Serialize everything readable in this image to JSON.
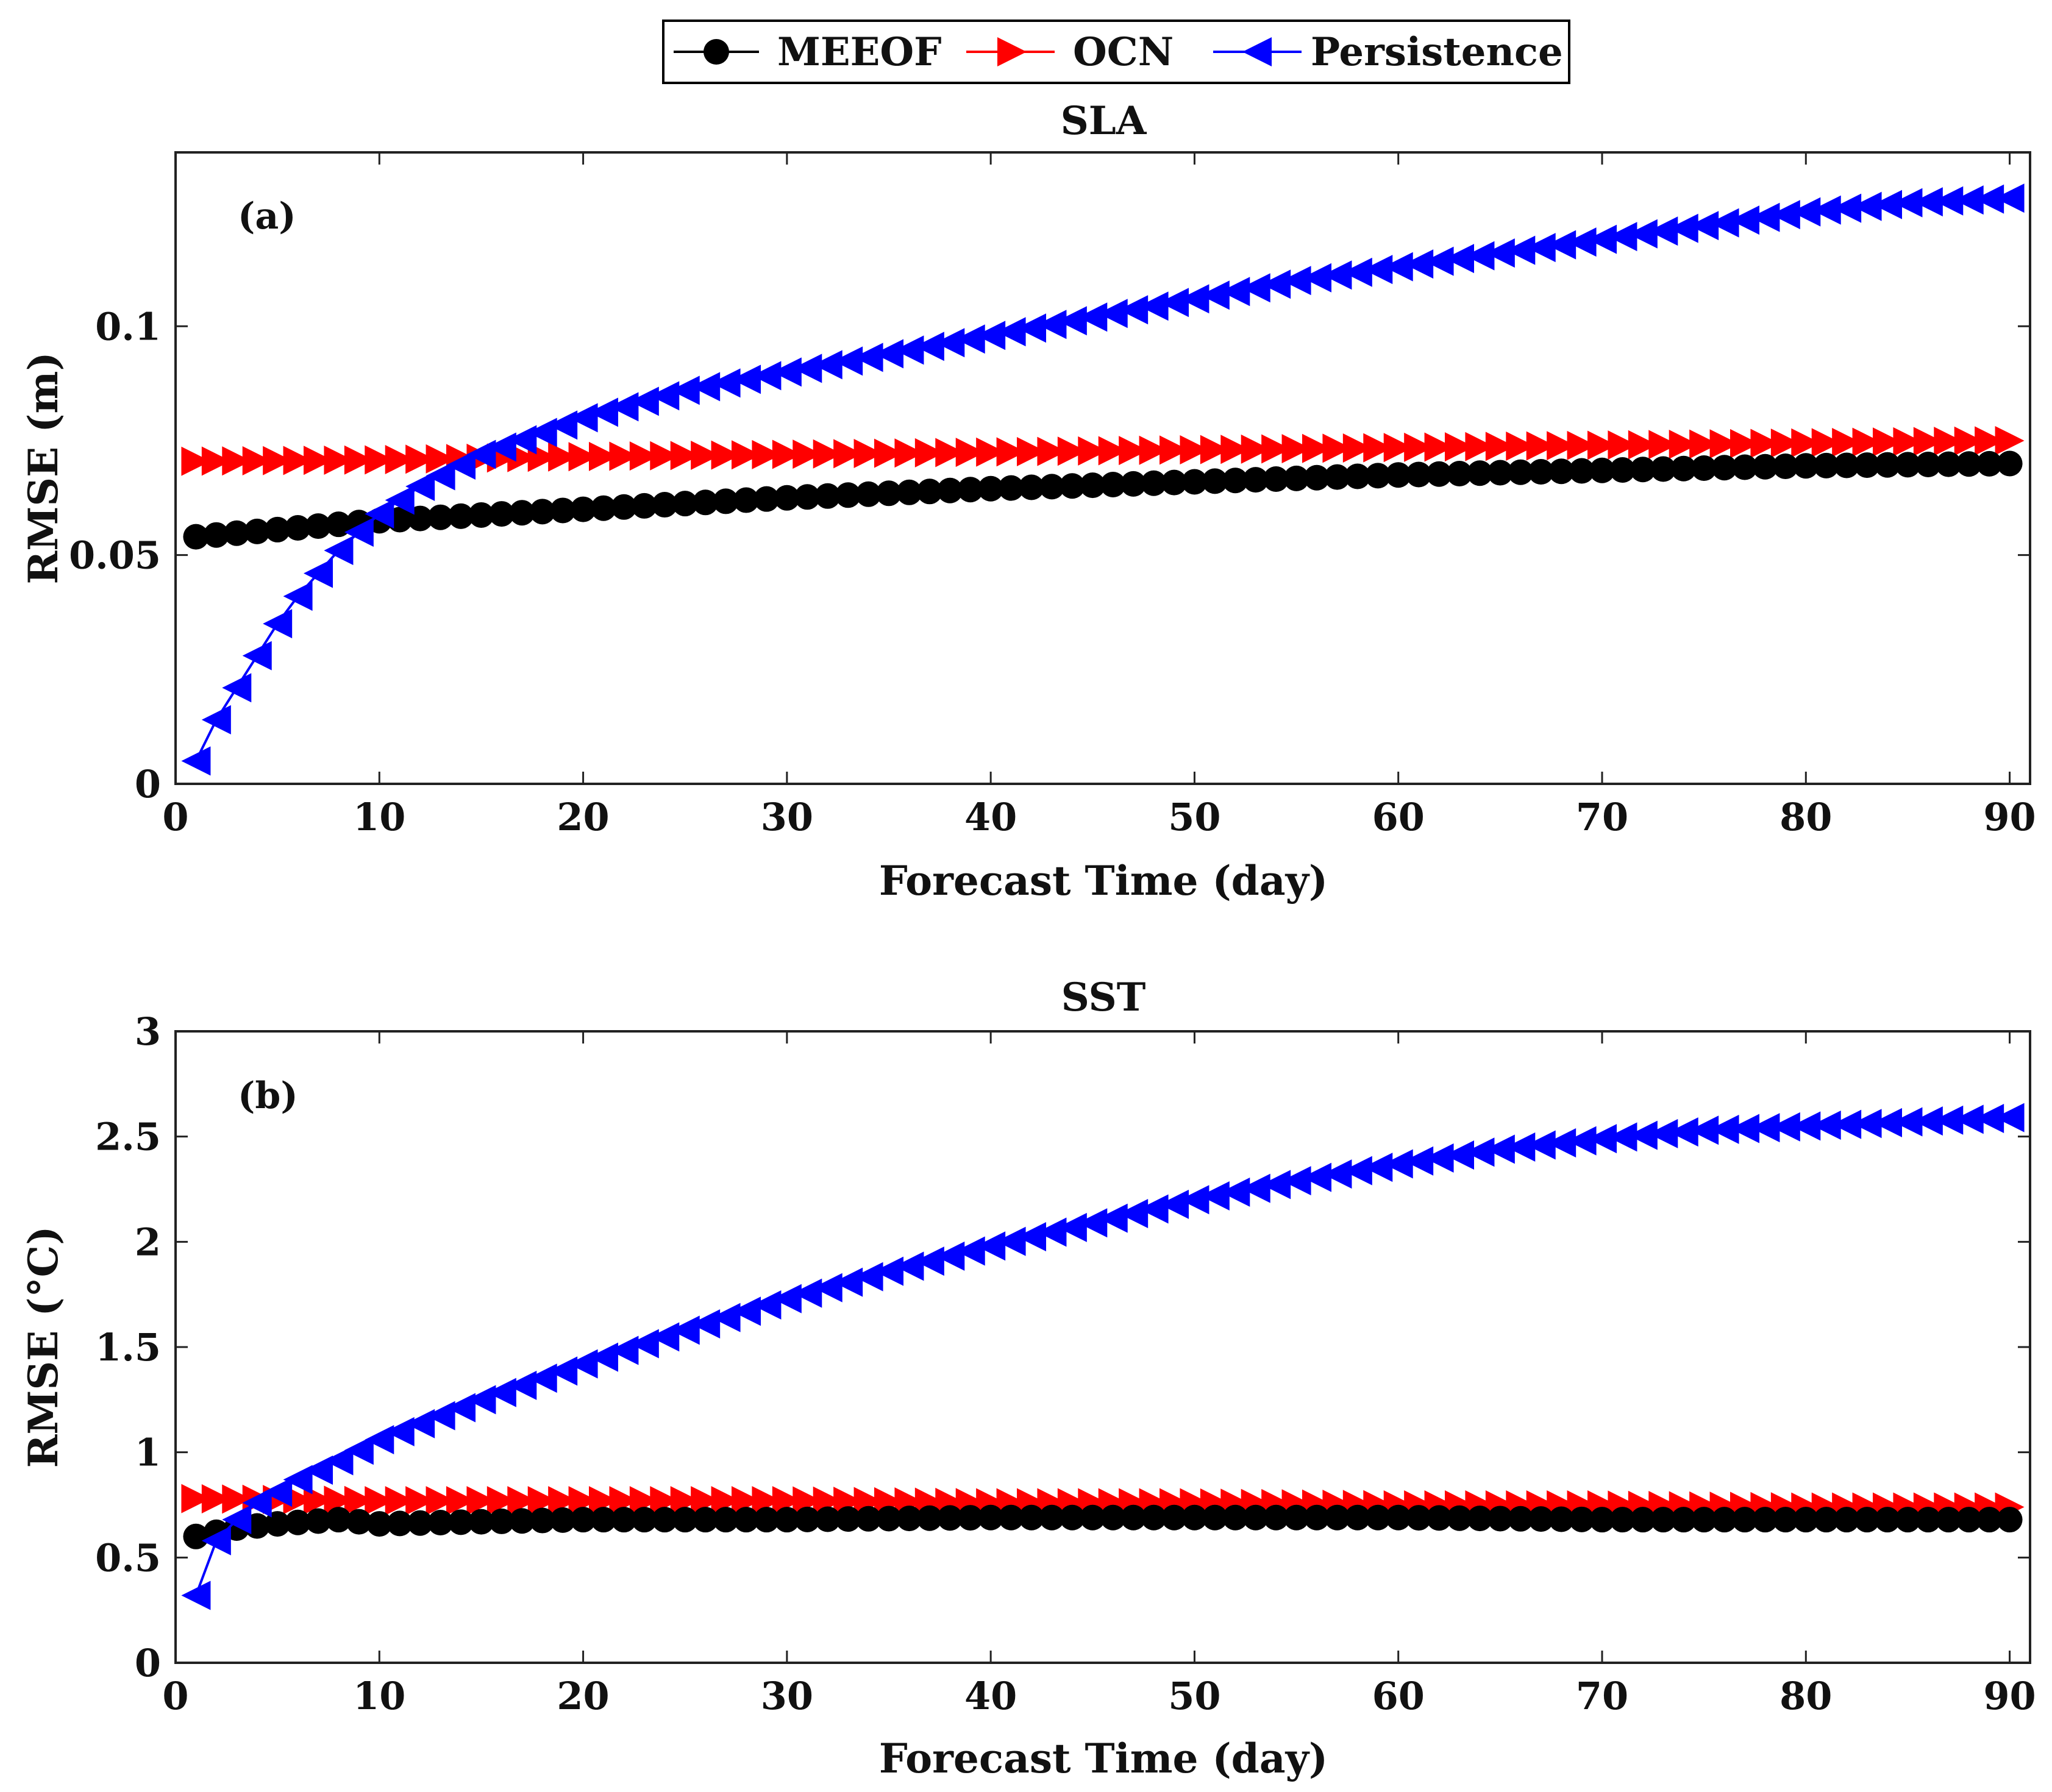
{
  "legend": {
    "entries": [
      {
        "label": "MEEOF",
        "color": "#000000",
        "marker": "circle"
      },
      {
        "label": "OCN",
        "color": "#ff0000",
        "marker": "triangle-right"
      },
      {
        "label": "Persistence",
        "color": "#0000ff",
        "marker": "triangle-left"
      }
    ],
    "placement": "top-center, outside plots"
  },
  "chart_data": [
    {
      "type": "line",
      "panel_label": "(a)",
      "title": "SLA",
      "xlabel": "Forecast Time (day)",
      "ylabel": "RMSE (m)",
      "xlim": [
        0,
        91
      ],
      "ylim": [
        0,
        0.138
      ],
      "xticks": [
        0,
        10,
        20,
        30,
        40,
        50,
        60,
        70,
        80,
        90
      ],
      "yticks": [
        0,
        0.05,
        0.1
      ],
      "ytick_labels": [
        "0",
        "0.05",
        "0.1"
      ],
      "xtick_labels": [
        "0",
        "10",
        "20",
        "30",
        "40",
        "50",
        "60",
        "70",
        "80",
        "90"
      ],
      "x_range_days": [
        1,
        90
      ],
      "grid": false,
      "series": [
        {
          "name": "MEEOF",
          "color": "#000000",
          "marker": "circle",
          "key_points": [
            [
              1,
              0.054
            ],
            [
              10,
              0.0575
            ],
            [
              20,
              0.06
            ],
            [
              30,
              0.0625
            ],
            [
              40,
              0.0645
            ],
            [
              50,
              0.066
            ],
            [
              60,
              0.0675
            ],
            [
              70,
              0.0685
            ],
            [
              80,
              0.0695
            ],
            [
              90,
              0.07
            ]
          ]
        },
        {
          "name": "OCN",
          "color": "#ff0000",
          "marker": "triangle-right",
          "key_points": [
            [
              1,
              0.0705
            ],
            [
              10,
              0.0708
            ],
            [
              20,
              0.0715
            ],
            [
              30,
              0.072
            ],
            [
              40,
              0.0725
            ],
            [
              50,
              0.073
            ],
            [
              60,
              0.0735
            ],
            [
              70,
              0.074
            ],
            [
              80,
              0.0745
            ],
            [
              90,
              0.075
            ]
          ]
        },
        {
          "name": "Persistence",
          "color": "#0000ff",
          "marker": "triangle-left",
          "key_points": [
            [
              1,
              0.005
            ],
            [
              2,
              0.014
            ],
            [
              3,
              0.021
            ],
            [
              4,
              0.028
            ],
            [
              5,
              0.035
            ],
            [
              6,
              0.041
            ],
            [
              7,
              0.046
            ],
            [
              8,
              0.051
            ],
            [
              9,
              0.055
            ],
            [
              10,
              0.059
            ],
            [
              12,
              0.065
            ],
            [
              15,
              0.072
            ],
            [
              20,
              0.08
            ],
            [
              25,
              0.086
            ],
            [
              30,
              0.09
            ],
            [
              35,
              0.094
            ],
            [
              40,
              0.098
            ],
            [
              45,
              0.102
            ],
            [
              50,
              0.106
            ],
            [
              55,
              0.11
            ],
            [
              60,
              0.113
            ],
            [
              65,
              0.116
            ],
            [
              70,
              0.119
            ],
            [
              75,
              0.122
            ],
            [
              80,
              0.125
            ],
            [
              85,
              0.127
            ],
            [
              90,
              0.128
            ]
          ]
        }
      ]
    },
    {
      "type": "line",
      "panel_label": "(b)",
      "title": "SST",
      "xlabel": "Forecast Time (day)",
      "ylabel": "RMSE (°C)",
      "xlim": [
        0,
        91
      ],
      "ylim": [
        0,
        3
      ],
      "xticks": [
        0,
        10,
        20,
        30,
        40,
        50,
        60,
        70,
        80,
        90
      ],
      "yticks": [
        0,
        0.5,
        1,
        1.5,
        2,
        2.5,
        3
      ],
      "ytick_labels": [
        "0",
        "0.5",
        "1",
        "1.5",
        "2",
        "2.5",
        "3"
      ],
      "xtick_labels": [
        "0",
        "10",
        "20",
        "30",
        "40",
        "50",
        "60",
        "70",
        "80",
        "90"
      ],
      "x_range_days": [
        1,
        90
      ],
      "grid": false,
      "series": [
        {
          "name": "MEEOF",
          "color": "#000000",
          "marker": "circle",
          "key_points": [
            [
              1,
              0.6
            ],
            [
              2,
              0.62
            ],
            [
              3,
              0.64
            ],
            [
              5,
              0.66
            ],
            [
              8,
              0.68
            ],
            [
              10,
              0.66
            ],
            [
              15,
              0.67
            ],
            [
              20,
              0.68
            ],
            [
              30,
              0.68
            ],
            [
              40,
              0.69
            ],
            [
              50,
              0.69
            ],
            [
              60,
              0.69
            ],
            [
              70,
              0.68
            ],
            [
              80,
              0.68
            ],
            [
              90,
              0.68
            ]
          ]
        },
        {
          "name": "OCN",
          "color": "#ff0000",
          "marker": "triangle-right",
          "key_points": [
            [
              1,
              0.78
            ],
            [
              10,
              0.77
            ],
            [
              20,
              0.77
            ],
            [
              30,
              0.77
            ],
            [
              40,
              0.76
            ],
            [
              50,
              0.76
            ],
            [
              60,
              0.75
            ],
            [
              70,
              0.75
            ],
            [
              80,
              0.74
            ],
            [
              90,
              0.74
            ]
          ]
        },
        {
          "name": "Persistence",
          "color": "#0000ff",
          "marker": "triangle-left",
          "key_points": [
            [
              1,
              0.32
            ],
            [
              2,
              0.58
            ],
            [
              3,
              0.68
            ],
            [
              4,
              0.76
            ],
            [
              5,
              0.81
            ],
            [
              6,
              0.87
            ],
            [
              8,
              0.96
            ],
            [
              10,
              1.06
            ],
            [
              15,
              1.25
            ],
            [
              20,
              1.42
            ],
            [
              25,
              1.58
            ],
            [
              30,
              1.73
            ],
            [
              35,
              1.86
            ],
            [
              40,
              1.98
            ],
            [
              45,
              2.09
            ],
            [
              50,
              2.2
            ],
            [
              55,
              2.29
            ],
            [
              60,
              2.37
            ],
            [
              65,
              2.44
            ],
            [
              70,
              2.49
            ],
            [
              75,
              2.53
            ],
            [
              80,
              2.55
            ],
            [
              85,
              2.57
            ],
            [
              90,
              2.59
            ]
          ]
        }
      ]
    }
  ]
}
